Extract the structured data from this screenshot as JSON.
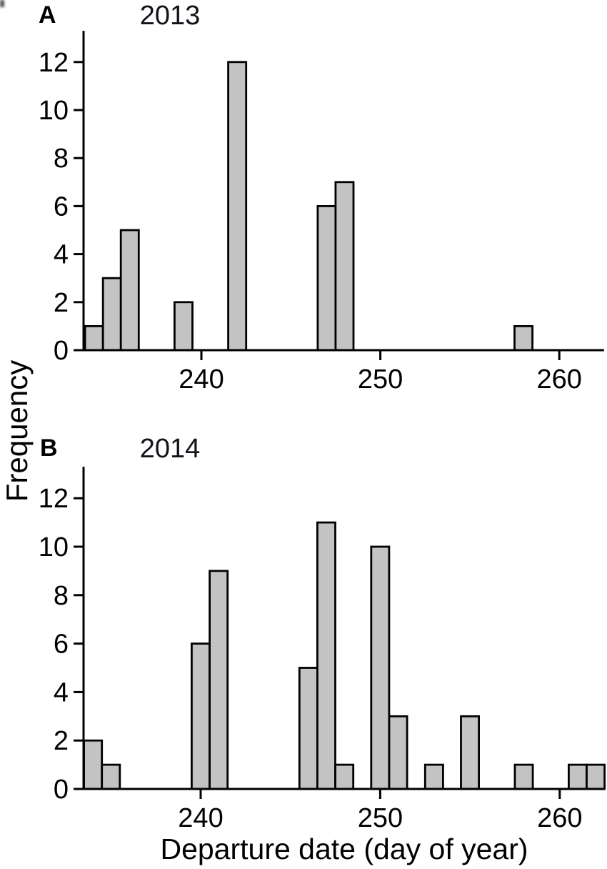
{
  "figure": {
    "ylabel": "Frequency",
    "xlabel": "Departure date (day of year)",
    "background": "#ffffff",
    "bar_fill": "#c3c3c3",
    "bar_stroke": "#000000",
    "axis_color": "#000000"
  },
  "chart_data": [
    {
      "type": "bar",
      "panel_label": "A",
      "title": "2013",
      "xlabel": "Departure date (day of year)",
      "ylabel": "Frequency",
      "bin_width": 1,
      "x": [
        234,
        235,
        236,
        239,
        242,
        247,
        248,
        258
      ],
      "values": [
        1,
        3,
        5,
        2,
        12,
        6,
        7,
        1
      ],
      "xticks": [
        240,
        250,
        260
      ],
      "yticks": [
        0,
        2,
        4,
        6,
        8,
        10,
        12
      ],
      "xlim": [
        233.4,
        262.5
      ],
      "ylim": [
        0,
        13.3
      ],
      "grid": false
    },
    {
      "type": "bar",
      "panel_label": "B",
      "title": "2014",
      "xlabel": "Departure date (day of year)",
      "ylabel": "Frequency",
      "bin_width": 1,
      "x": [
        234,
        235,
        240,
        241,
        246,
        247,
        248,
        250,
        251,
        253,
        255,
        258,
        261,
        262
      ],
      "values": [
        2,
        1,
        6,
        9,
        5,
        11,
        1,
        10,
        3,
        1,
        3,
        1,
        1,
        1
      ],
      "xticks": [
        240,
        250,
        260
      ],
      "yticks": [
        0,
        2,
        4,
        6,
        8,
        10,
        12
      ],
      "xlim": [
        233.4,
        262.5
      ],
      "ylim": [
        0,
        13.3
      ],
      "grid": false
    }
  ]
}
